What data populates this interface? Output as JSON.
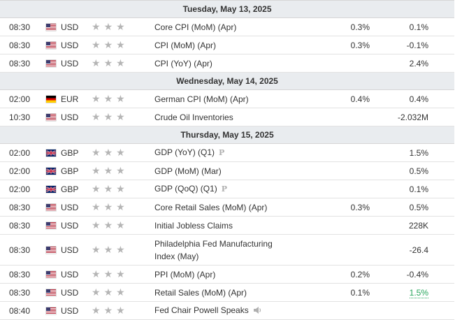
{
  "days": [
    {
      "date": "Tuesday, May 13, 2025",
      "events": [
        {
          "time": "08:30",
          "flag": "us",
          "currency": "USD",
          "event": "Core CPI (MoM) (Apr)",
          "forecast": "0.3%",
          "previous": "0.1%"
        },
        {
          "time": "08:30",
          "flag": "us",
          "currency": "USD",
          "event": "CPI (MoM) (Apr)",
          "forecast": "0.3%",
          "previous": "-0.1%"
        },
        {
          "time": "08:30",
          "flag": "us",
          "currency": "USD",
          "event": "CPI (YoY) (Apr)",
          "forecast": "",
          "previous": "2.4%"
        }
      ]
    },
    {
      "date": "Wednesday, May 14, 2025",
      "events": [
        {
          "time": "02:00",
          "flag": "de",
          "currency": "EUR",
          "event": "German CPI (MoM) (Apr)",
          "forecast": "0.4%",
          "previous": "0.4%"
        },
        {
          "time": "10:30",
          "flag": "us",
          "currency": "USD",
          "event": "Crude Oil Inventories",
          "forecast": "",
          "previous": "-2.032M"
        }
      ]
    },
    {
      "date": "Thursday, May 15, 2025",
      "events": [
        {
          "time": "02:00",
          "flag": "gb",
          "currency": "GBP",
          "event": "GDP (YoY) (Q1)",
          "badge": "P",
          "forecast": "",
          "previous": "1.5%"
        },
        {
          "time": "02:00",
          "flag": "gb",
          "currency": "GBP",
          "event": "GDP (MoM) (Mar)",
          "forecast": "",
          "previous": "0.5%"
        },
        {
          "time": "02:00",
          "flag": "gb",
          "currency": "GBP",
          "event": "GDP (QoQ) (Q1)",
          "badge": "P",
          "forecast": "",
          "previous": "0.1%"
        },
        {
          "time": "08:30",
          "flag": "us",
          "currency": "USD",
          "event": "Core Retail Sales (MoM) (Apr)",
          "forecast": "0.3%",
          "previous": "0.5%"
        },
        {
          "time": "08:30",
          "flag": "us",
          "currency": "USD",
          "event": "Initial Jobless Claims",
          "forecast": "",
          "previous": "228K"
        },
        {
          "time": "08:30",
          "flag": "us",
          "currency": "USD",
          "event": "Philadelphia Fed Manufacturing Index (May)",
          "forecast": "",
          "previous": "-26.4",
          "tall": true
        },
        {
          "time": "08:30",
          "flag": "us",
          "currency": "USD",
          "event": "PPI (MoM) (Apr)",
          "forecast": "0.2%",
          "previous": "-0.4%"
        },
        {
          "time": "08:30",
          "flag": "us",
          "currency": "USD",
          "event": "Retail Sales (MoM) (Apr)",
          "forecast": "0.1%",
          "previous": "1.5%",
          "previous_better": true
        },
        {
          "time": "08:40",
          "flag": "us",
          "currency": "USD",
          "event": "Fed Chair Powell Speaks",
          "speech": true,
          "forecast": "",
          "previous": ""
        }
      ]
    }
  ],
  "stars": [
    "★",
    "★",
    "★"
  ],
  "colors": {
    "day_bg": "#e9ecef",
    "star": "#b5b5b5",
    "better": "#26a65b",
    "border": "#e2e2e2"
  },
  "icons": {
    "speech": "speaker-icon",
    "preliminary": "preliminary-badge"
  }
}
